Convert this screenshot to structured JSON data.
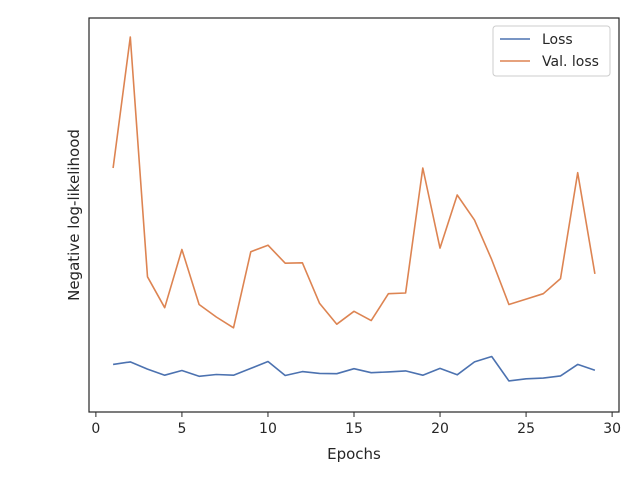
{
  "chart_data": {
    "type": "line",
    "title": "",
    "xlabel": "Epochs",
    "ylabel": "Negative log-likelihood",
    "xlim": [
      -0.4,
      30.4
    ],
    "ylim": [
      0,
      1
    ],
    "xticks": [
      0,
      5,
      10,
      15,
      20,
      25,
      30
    ],
    "yticks_shown": false,
    "grid": false,
    "legend_position": "top-right",
    "x": [
      1,
      2,
      3,
      4,
      5,
      6,
      7,
      8,
      9,
      10,
      11,
      12,
      13,
      14,
      15,
      16,
      17,
      18,
      19,
      20,
      21,
      22,
      23,
      24,
      25,
      26,
      27,
      28,
      29
    ],
    "series": [
      {
        "name": "Loss",
        "color": "#4c72b0",
        "values": [
          0.088,
          0.095,
          0.075,
          0.058,
          0.071,
          0.055,
          0.06,
          0.058,
          0.077,
          0.096,
          0.057,
          0.068,
          0.063,
          0.062,
          0.076,
          0.065,
          0.067,
          0.07,
          0.058,
          0.077,
          0.059,
          0.095,
          0.11,
          0.042,
          0.048,
          0.05,
          0.056,
          0.088,
          0.072
        ]
      },
      {
        "name": "Val. loss",
        "color": "#dd8452",
        "values": [
          0.635,
          1.0,
          0.332,
          0.246,
          0.408,
          0.255,
          0.22,
          0.19,
          0.402,
          0.42,
          0.37,
          0.371,
          0.258,
          0.2,
          0.236,
          0.21,
          0.285,
          0.287,
          0.635,
          0.412,
          0.56,
          0.49,
          0.38,
          0.255,
          0.27,
          0.285,
          0.327,
          0.622,
          0.34
        ]
      }
    ]
  }
}
